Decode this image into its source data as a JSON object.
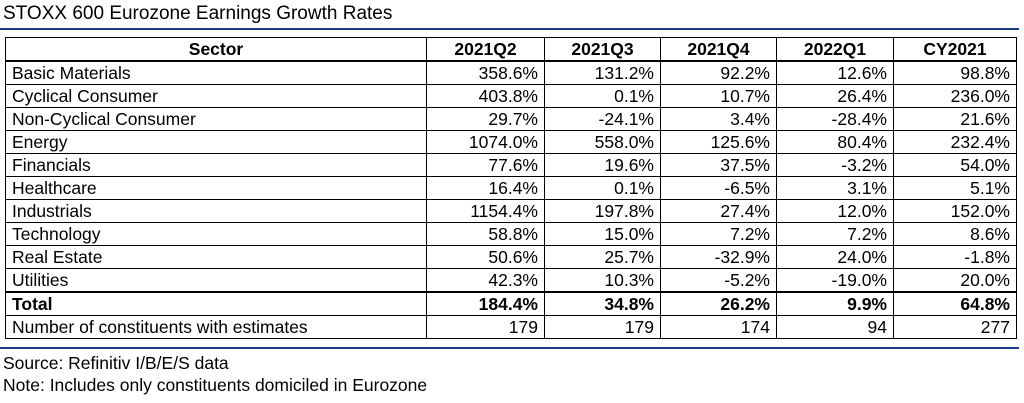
{
  "title": "STOXX 600 Eurozone Earnings Growth Rates",
  "footnotes": {
    "source": "Source: Refinitiv I/B/E/S data",
    "note": "Note: Includes only constituents domiciled in Eurozone"
  },
  "chart_data": {
    "type": "table",
    "title": "STOXX 600 Eurozone Earnings Growth Rates",
    "header": [
      "Sector",
      "2021Q2",
      "2021Q3",
      "2021Q4",
      "2022Q1",
      "CY2021"
    ],
    "rows": [
      [
        "Basic Materials",
        "358.6%",
        "131.2%",
        "92.2%",
        "12.6%",
        "98.8%"
      ],
      [
        "Cyclical Consumer",
        "403.8%",
        "0.1%",
        "10.7%",
        "26.4%",
        "236.0%"
      ],
      [
        "Non-Cyclical Consumer",
        "29.7%",
        "-24.1%",
        "3.4%",
        "-28.4%",
        "21.6%"
      ],
      [
        "Energy",
        "1074.0%",
        "558.0%",
        "125.6%",
        "80.4%",
        "232.4%"
      ],
      [
        "Financials",
        "77.6%",
        "19.6%",
        "37.5%",
        "-3.2%",
        "54.0%"
      ],
      [
        "Healthcare",
        "16.4%",
        "0.1%",
        "-6.5%",
        "3.1%",
        "5.1%"
      ],
      [
        "Industrials",
        "1154.4%",
        "197.8%",
        "27.4%",
        "12.0%",
        "152.0%"
      ],
      [
        "Technology",
        "58.8%",
        "15.0%",
        "7.2%",
        "7.2%",
        "8.6%"
      ],
      [
        "Real Estate",
        "50.6%",
        "25.7%",
        "-32.9%",
        "24.0%",
        "-1.8%"
      ],
      [
        "Utilities",
        "42.3%",
        "10.3%",
        "-5.2%",
        "-19.0%",
        "20.0%"
      ]
    ],
    "total": [
      "Total",
      "184.4%",
      "34.8%",
      "26.2%",
      "9.9%",
      "64.8%"
    ],
    "constituents": [
      "Number of constituents with estimates",
      "179",
      "179",
      "174",
      "94",
      "277"
    ]
  }
}
